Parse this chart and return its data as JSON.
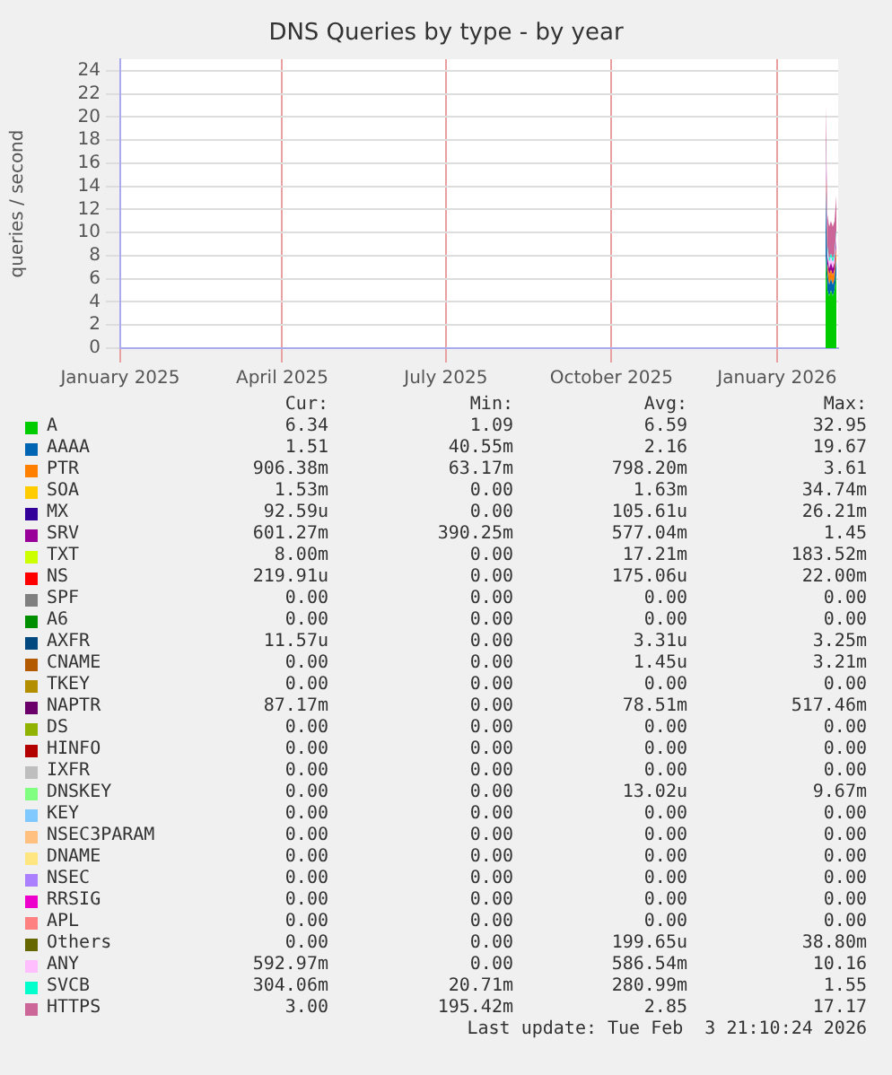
{
  "chart_data": {
    "type": "area",
    "stacked": true,
    "title": "DNS Queries by type - by year",
    "ylabel": "queries / second",
    "x": [
      "2026-01-28",
      "2026-01-29",
      "2026-01-30",
      "2026-01-31",
      "2026-02-01",
      "2026-02-02",
      "2026-02-03"
    ],
    "xlim": [
      "2025-01-01",
      "2026-02-04"
    ],
    "xticks": [
      {
        "value": "2025-01-01",
        "label": "January 2025"
      },
      {
        "value": "2025-04-01",
        "label": "April 2025"
      },
      {
        "value": "2025-07-01",
        "label": "July 2025"
      },
      {
        "value": "2025-10-01",
        "label": "October 2025"
      },
      {
        "value": "2026-01-01",
        "label": "January 2026"
      }
    ],
    "ylim": [
      0,
      25
    ],
    "yticks": [
      0,
      2,
      4,
      6,
      8,
      10,
      12,
      14,
      16,
      18,
      20,
      22,
      24
    ],
    "grid": true,
    "legend": "bottom",
    "series": [
      {
        "name": "A",
        "color": "#00cc00",
        "values": [
          8,
          5,
          4.5,
          5,
          4.5,
          5,
          6.3
        ]
      },
      {
        "name": "AAAA",
        "color": "#0066b3",
        "values": [
          6,
          1.5,
          1,
          1,
          1,
          1,
          1.5
        ]
      },
      {
        "name": "PTR",
        "color": "#ff8000",
        "values": [
          1,
          0.8,
          0.8,
          0.8,
          0.8,
          0.8,
          0.9
        ]
      },
      {
        "name": "SOA",
        "color": "#ffcc00",
        "values": [
          null,
          null,
          null,
          null,
          null,
          null,
          null
        ]
      },
      {
        "name": "MX",
        "color": "#330099",
        "values": [
          null,
          null,
          null,
          null,
          null,
          null,
          null
        ]
      },
      {
        "name": "SRV",
        "color": "#990099",
        "values": [
          0.6,
          0.6,
          0.6,
          0.6,
          0.6,
          0.6,
          0.6
        ]
      },
      {
        "name": "TXT",
        "color": "#ccff00",
        "values": [
          null,
          null,
          null,
          null,
          null,
          null,
          null
        ]
      },
      {
        "name": "NS",
        "color": "#ff0000",
        "values": [
          null,
          null,
          null,
          null,
          null,
          null,
          null
        ]
      },
      {
        "name": "SPF",
        "color": "#808080",
        "values": [
          null,
          null,
          null,
          null,
          null,
          null,
          null
        ]
      },
      {
        "name": "A6",
        "color": "#008f00",
        "values": [
          null,
          null,
          null,
          null,
          null,
          null,
          null
        ]
      },
      {
        "name": "AXFR",
        "color": "#00487d",
        "values": [
          null,
          null,
          null,
          null,
          null,
          null,
          null
        ]
      },
      {
        "name": "CNAME",
        "color": "#b35a00",
        "values": [
          null,
          null,
          null,
          null,
          null,
          null,
          null
        ]
      },
      {
        "name": "TKEY",
        "color": "#b38f00",
        "values": [
          null,
          null,
          null,
          null,
          null,
          null,
          null
        ]
      },
      {
        "name": "NAPTR",
        "color": "#6b006b",
        "values": [
          null,
          null,
          null,
          null,
          null,
          null,
          null
        ]
      },
      {
        "name": "DS",
        "color": "#8fb300",
        "values": [
          null,
          null,
          null,
          null,
          null,
          null,
          null
        ]
      },
      {
        "name": "HINFO",
        "color": "#b30000",
        "values": [
          null,
          null,
          null,
          null,
          null,
          null,
          null
        ]
      },
      {
        "name": "IXFR",
        "color": "#bebebe",
        "values": [
          null,
          null,
          null,
          null,
          null,
          null,
          null
        ]
      },
      {
        "name": "DNSKEY",
        "color": "#80ff80",
        "values": [
          null,
          null,
          null,
          null,
          null,
          null,
          null
        ]
      },
      {
        "name": "KEY",
        "color": "#80c9ff",
        "values": [
          null,
          null,
          null,
          null,
          null,
          null,
          null
        ]
      },
      {
        "name": "NSEC3PARAM",
        "color": "#ffc080",
        "values": [
          null,
          null,
          null,
          null,
          null,
          null,
          null
        ]
      },
      {
        "name": "DNAME",
        "color": "#ffe680",
        "values": [
          null,
          null,
          null,
          null,
          null,
          null,
          null
        ]
      },
      {
        "name": "NSEC",
        "color": "#aa80ff",
        "values": [
          null,
          null,
          null,
          null,
          null,
          null,
          null
        ]
      },
      {
        "name": "RRSIG",
        "color": "#ee00cc",
        "values": [
          null,
          null,
          null,
          null,
          null,
          null,
          null
        ]
      },
      {
        "name": "APL",
        "color": "#ff8080",
        "values": [
          null,
          null,
          null,
          null,
          null,
          null,
          null
        ]
      },
      {
        "name": "Others",
        "color": "#666600",
        "values": [
          null,
          null,
          null,
          null,
          null,
          null,
          null
        ]
      },
      {
        "name": "ANY",
        "color": "#ffbfff",
        "values": [
          2,
          0.6,
          0.5,
          0.5,
          0.5,
          0.5,
          0.6
        ]
      },
      {
        "name": "SVCB",
        "color": "#00ffcc",
        "values": [
          0.5,
          0.3,
          0.3,
          0.3,
          0.3,
          0.3,
          0.3
        ]
      },
      {
        "name": "HTTPS",
        "color": "#cc6699",
        "values": [
          3,
          2.8,
          2.8,
          2.8,
          2.8,
          2.8,
          3
        ]
      }
    ],
    "annotations": [
      "Cur:",
      "Min:",
      "Avg:",
      "Max:",
      "6.34",
      "1.09",
      "6.59",
      "32.95",
      "1.51",
      "40.55m",
      "2.16",
      "19.67",
      "906.38m",
      "63.17m",
      "798.20m",
      "3.61",
      "1.53m",
      "0.00",
      "1.63m",
      "34.74m",
      "92.59u",
      "0.00",
      "105.61u",
      "26.21m",
      "601.27m",
      "390.25m",
      "577.04m",
      "1.45",
      "8.00m",
      "0.00",
      "17.21m",
      "183.52m",
      "219.91u",
      "0.00",
      "175.06u",
      "22.00m",
      "0.00",
      "0.00",
      "0.00",
      "0.00",
      "0.00",
      "0.00",
      "0.00",
      "0.00",
      "11.57u",
      "0.00",
      "3.31u",
      "3.25m",
      "0.00",
      "0.00",
      "1.45u",
      "3.21m",
      "0.00",
      "0.00",
      "0.00",
      "0.00",
      "87.17m",
      "0.00",
      "78.51m",
      "517.46m",
      "0.00",
      "0.00",
      "0.00",
      "0.00",
      "0.00",
      "0.00",
      "0.00",
      "0.00",
      "0.00",
      "0.00",
      "0.00",
      "0.00",
      "0.00",
      "0.00",
      "13.02u",
      "9.67m",
      "0.00",
      "0.00",
      "0.00",
      "0.00",
      "0.00",
      "0.00",
      "0.00",
      "0.00",
      "0.00",
      "0.00",
      "0.00",
      "0.00",
      "0.00",
      "0.00",
      "0.00",
      "0.00",
      "0.00",
      "0.00",
      "0.00",
      "0.00",
      "0.00",
      "0.00",
      "0.00",
      "0.00",
      "0.00",
      "0.00",
      "199.65u",
      "38.80m",
      "592.97m",
      "0.00",
      "586.54m",
      "10.16",
      "304.06m",
      "20.71m",
      "280.99m",
      "1.55",
      "3.00",
      "195.42m",
      "2.85",
      "17.17",
      "Last update: Tue Feb  3 21:10:24 2026"
    ]
  }
}
